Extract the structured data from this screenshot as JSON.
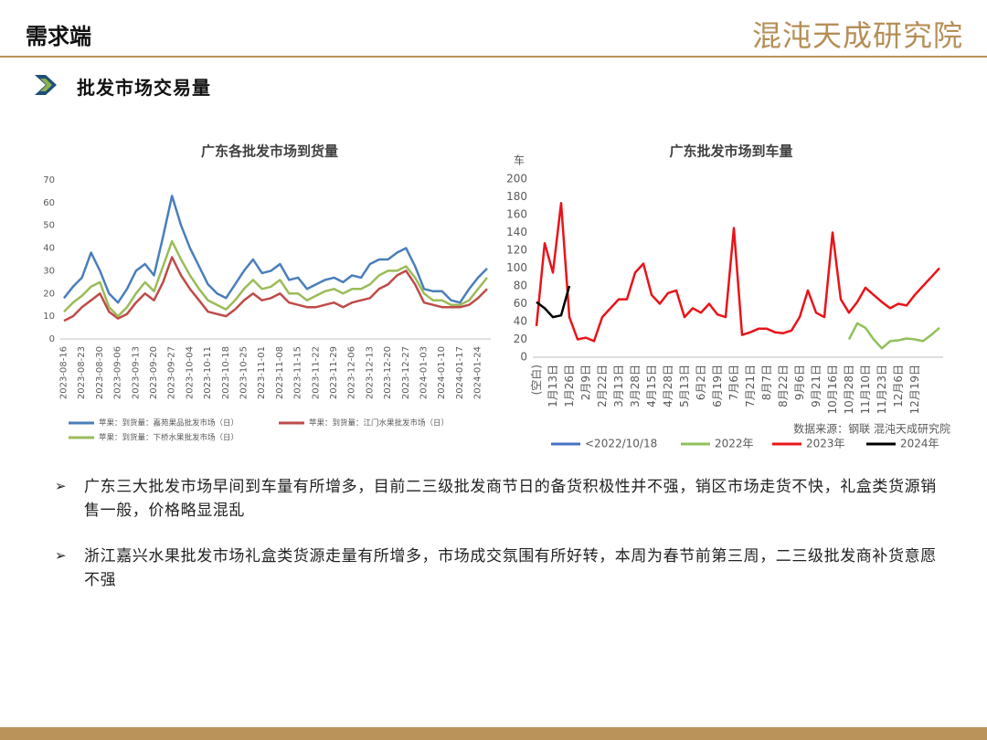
{
  "header": {
    "title": "需求端",
    "logo": "混沌天成研究院"
  },
  "section": "批发市场交易量",
  "bullets": [
    "广东三大批发市场早间到车量有所增多，目前二三级批发商节日的备货积极性并不强，销区市场走货不快，礼盒类货源销售一般，价格略显混乱",
    "浙江嘉兴水果批发市场礼盒类货源走量有所增多，市场成交氛围有所好转，本周为春节前第三周，二三级批发商补货意愿不强"
  ],
  "chart_data": [
    {
      "type": "line",
      "title": "广东各批发市场到货量",
      "categories": [
        "2023-08-16",
        null,
        "2023-08-23",
        null,
        "2023-08-30",
        null,
        "2023-09-06",
        null,
        "2023-09-13",
        null,
        "2023-09-20",
        null,
        "2023-09-27",
        null,
        "2023-10-04",
        null,
        "2023-10-11",
        null,
        "2023-10-18",
        null,
        "2023-10-25",
        null,
        "2023-11-01",
        null,
        "2023-11-08",
        null,
        "2023-11-15",
        null,
        "2023-11-22",
        null,
        "2023-11-29",
        null,
        "2023-12-06",
        null,
        "2023-12-13",
        null,
        "2023-12-20",
        null,
        "2023-12-27",
        null,
        "2024-01-03",
        null,
        "2024-01-10",
        null,
        "2024-01-17",
        null,
        "2024-01-24",
        null
      ],
      "series": [
        {
          "name": "苹果：到货量：嘉苑果品批发市场（日）",
          "color": "#4a7ebb",
          "values": [
            18,
            23,
            27,
            38,
            30,
            20,
            16,
            22,
            30,
            33,
            28,
            45,
            63,
            50,
            40,
            32,
            24,
            20,
            18,
            24,
            30,
            35,
            29,
            30,
            33,
            26,
            27,
            22,
            24,
            26,
            27,
            25,
            28,
            27,
            33,
            35,
            35,
            38,
            40,
            32,
            22,
            21,
            21,
            17,
            16,
            22,
            27,
            31
          ]
        },
        {
          "name": "苹果：到货量：江门水果批发市场（日）",
          "color": "#be4b48",
          "values": [
            8,
            10,
            14,
            17,
            20,
            12,
            9,
            11,
            16,
            20,
            17,
            25,
            36,
            28,
            22,
            17,
            12,
            11,
            10,
            13,
            17,
            20,
            17,
            18,
            20,
            16,
            15,
            14,
            14,
            15,
            16,
            14,
            16,
            17,
            18,
            22,
            24,
            28,
            30,
            24,
            16,
            15,
            14,
            14,
            14,
            15,
            18,
            22
          ]
        },
        {
          "name": "苹果：到货量：下桥水果批发市场（日）",
          "color": "#9bbb59",
          "values": [
            12,
            16,
            19,
            23,
            25,
            14,
            10,
            14,
            20,
            25,
            21,
            32,
            43,
            35,
            28,
            22,
            17,
            15,
            13,
            17,
            22,
            26,
            22,
            23,
            26,
            20,
            20,
            17,
            19,
            21,
            22,
            20,
            22,
            22,
            24,
            28,
            30,
            30,
            32,
            27,
            20,
            17,
            17,
            15,
            15,
            17,
            22,
            27
          ]
        }
      ],
      "ylim": [
        0,
        70
      ],
      "yticks": [
        0,
        10,
        20,
        30,
        40,
        50,
        60,
        70
      ],
      "grid": false,
      "legend": "bottom"
    },
    {
      "type": "line",
      "title": "广东批发市场到车量",
      "y_label": "车",
      "annotation": "数据来源：钢联   混沌天成研究院",
      "categories": [
        "(空白)",
        null,
        "1月13日",
        null,
        "1月26日",
        null,
        "2月9日",
        null,
        "2月22日",
        null,
        "3月13日",
        null,
        "3月28日",
        null,
        "4月15日",
        null,
        "4月28日",
        null,
        "5月13日",
        null,
        "6月2日",
        null,
        "6月19日",
        null,
        "7月6日",
        null,
        "7月21日",
        null,
        "8月7日",
        null,
        "8月22日",
        null,
        "9月6日",
        null,
        "9月21日",
        null,
        "10月16日",
        null,
        "10月28日",
        null,
        "11月10日",
        null,
        "11月23日",
        null,
        "12月6日",
        null,
        "12月19日",
        null,
        null,
        null
      ],
      "series": [
        {
          "name": "<2022/10/18",
          "color": "#4472c4",
          "values": [
            null,
            null,
            null,
            null,
            null,
            null,
            null,
            null,
            null,
            null,
            null,
            null,
            null,
            null,
            null,
            null,
            null,
            null,
            null,
            null,
            null,
            null,
            null,
            null,
            null,
            null,
            null,
            null,
            null,
            null,
            null,
            null,
            null,
            null,
            null,
            null,
            null,
            null,
            null,
            null,
            null,
            null,
            null,
            null,
            null,
            null,
            null,
            null,
            null,
            null
          ]
        },
        {
          "name": "2022年",
          "color": "#92c05c",
          "values": [
            null,
            null,
            null,
            null,
            null,
            null,
            null,
            null,
            null,
            null,
            null,
            null,
            null,
            null,
            null,
            null,
            null,
            null,
            null,
            null,
            null,
            null,
            null,
            null,
            null,
            null,
            null,
            null,
            null,
            null,
            null,
            null,
            null,
            null,
            null,
            null,
            null,
            null,
            20,
            38,
            33,
            20,
            10,
            18,
            19,
            21,
            20,
            18,
            25,
            33
          ]
        },
        {
          "name": "2023年",
          "color": "#e8141a",
          "values": [
            35,
            128,
            95,
            173,
            45,
            20,
            22,
            18,
            45,
            55,
            65,
            65,
            95,
            105,
            70,
            60,
            72,
            75,
            45,
            55,
            50,
            60,
            48,
            45,
            145,
            25,
            28,
            32,
            32,
            28,
            27,
            30,
            45,
            75,
            50,
            45,
            140,
            65,
            50,
            62,
            78,
            70,
            62,
            55,
            60,
            58,
            70,
            80,
            90,
            100
          ]
        },
        {
          "name": "2024年",
          "color": "#000000",
          "values": [
            62,
            55,
            45,
            47,
            80,
            null,
            null,
            null,
            null,
            null,
            null,
            null,
            null,
            null,
            null,
            null,
            null,
            null,
            null,
            null,
            null,
            null,
            null,
            null,
            null,
            null,
            null,
            null,
            null,
            null,
            null,
            null,
            null,
            null,
            null,
            null,
            null,
            null,
            null,
            null,
            null,
            null,
            null,
            null,
            null,
            null,
            null,
            null,
            null,
            null
          ]
        }
      ],
      "ylim": [
        0,
        200
      ],
      "yticks": [
        0,
        20,
        40,
        60,
        80,
        100,
        120,
        140,
        160,
        180,
        200
      ],
      "grid": false,
      "legend": "bottom"
    }
  ]
}
